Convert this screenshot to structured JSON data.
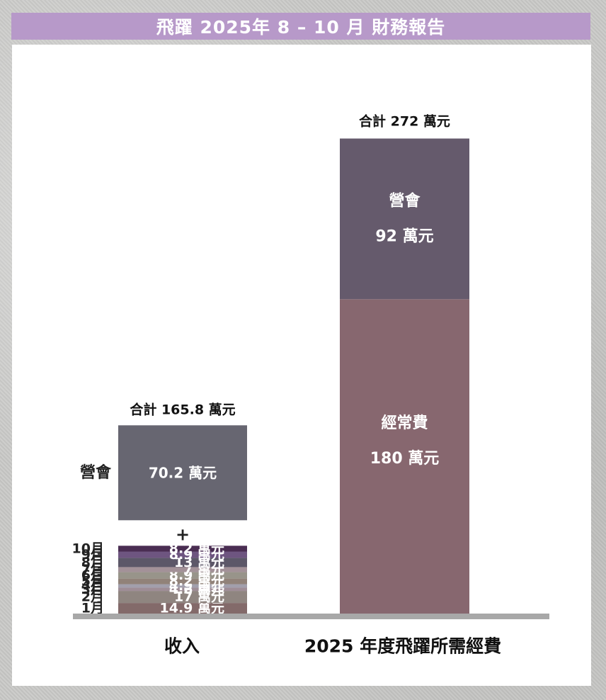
{
  "title": "飛躍 2025年 8 – 10 月 財務報告",
  "chart_data": {
    "type": "bar",
    "stacked": true,
    "categories": [
      "收入",
      "2025 年度飛躍所需經費"
    ],
    "income": {
      "category": "收入",
      "total_label": "合計 165.8 萬元",
      "total": 165.8,
      "plus_sign": "+",
      "event": {
        "name": "營會",
        "value": 70.2,
        "label": "70.2 萬元",
        "color": "#676671"
      },
      "months": [
        {
          "month": "1月",
          "value": 14.9,
          "label": "14.9 萬元",
          "color": "#836a6a"
        },
        {
          "month": "2月",
          "value": 17,
          "label": "17 萬元",
          "color": "#8f8580"
        },
        {
          "month": "3月",
          "value": 4.6,
          "label": "4.6 萬元",
          "color": "#9f8d96"
        },
        {
          "month": "4月",
          "value": 4.9,
          "label": "4.9 萬元",
          "color": "#a29fac"
        },
        {
          "month": "5月",
          "value": 8.2,
          "label": "8.2 萬元",
          "color": "#918279"
        },
        {
          "month": "6月",
          "value": 8.9,
          "label": "8.9 萬元",
          "color": "#98948a"
        },
        {
          "month": "7月",
          "value": 7,
          "label": "7 萬元",
          "color": "#a39198"
        },
        {
          "month": "8月",
          "value": 13,
          "label": "13 萬元",
          "color": "#5c5768"
        },
        {
          "month": "9月",
          "value": 8.9,
          "label": "8.9 萬元",
          "color": "#6e5580"
        },
        {
          "month": "10月",
          "value": 8.2,
          "label": "8.2 萬元",
          "color": "#4a2d52"
        }
      ]
    },
    "expense": {
      "category": "2025 年度飛躍所需經費",
      "total_label": "合計 272 萬元",
      "total": 272,
      "segments": [
        {
          "name": "經常費",
          "value": 180,
          "label": "180 萬元",
          "color": "#87676f"
        },
        {
          "name": "營會",
          "value": 92,
          "label": "92 萬元",
          "color": "#655a6c"
        }
      ]
    },
    "baseline_color": "#a8a8a8",
    "grid": false,
    "legend": "none"
  }
}
